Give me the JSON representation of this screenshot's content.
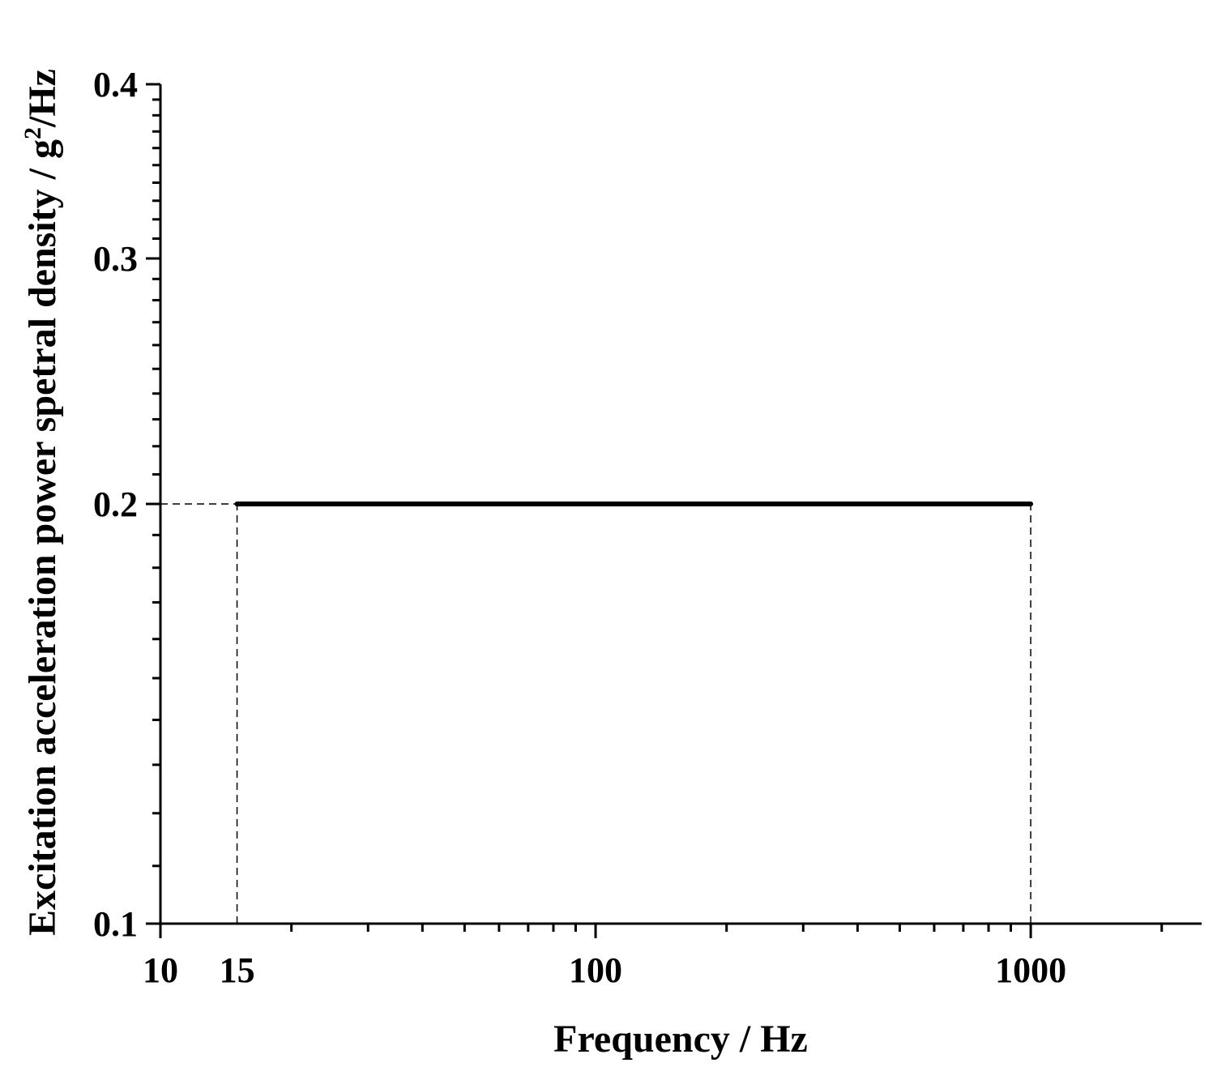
{
  "chart_data": {
    "type": "line",
    "title": "",
    "xlabel": "Frequency / Hz",
    "ylabel": {
      "main": "Excitation acceleration power spetral density / g",
      "sup": "2",
      "tail": "/Hz"
    },
    "x_scale": "log",
    "y_scale": "log",
    "xlim": [
      10,
      2470
    ],
    "ylim": [
      0.1,
      0.4
    ],
    "x_tick_labels": [
      "10",
      "15",
      "100",
      "1000"
    ],
    "x_tick_values": [
      10,
      15,
      100,
      1000
    ],
    "y_tick_labels": [
      "0.1",
      "0.2",
      "0.3",
      "0.4"
    ],
    "y_tick_values": [
      0.1,
      0.2,
      0.3,
      0.4
    ],
    "series": [
      {
        "x": [
          15,
          1000
        ],
        "y": [
          0.2,
          0.2
        ],
        "color": "#000000"
      }
    ],
    "reference_lines": [
      {
        "orientation": "vertical",
        "x": 15,
        "y_from": 0.1,
        "y_to": 0.2,
        "style": "dashed"
      },
      {
        "orientation": "vertical",
        "x": 1000,
        "y_from": 0.1,
        "y_to": 0.2,
        "style": "dashed"
      },
      {
        "orientation": "horizontal",
        "y": 0.2,
        "x_from": 10,
        "x_to": 15,
        "style": "dashed"
      }
    ],
    "grid": false,
    "legend": "none"
  }
}
